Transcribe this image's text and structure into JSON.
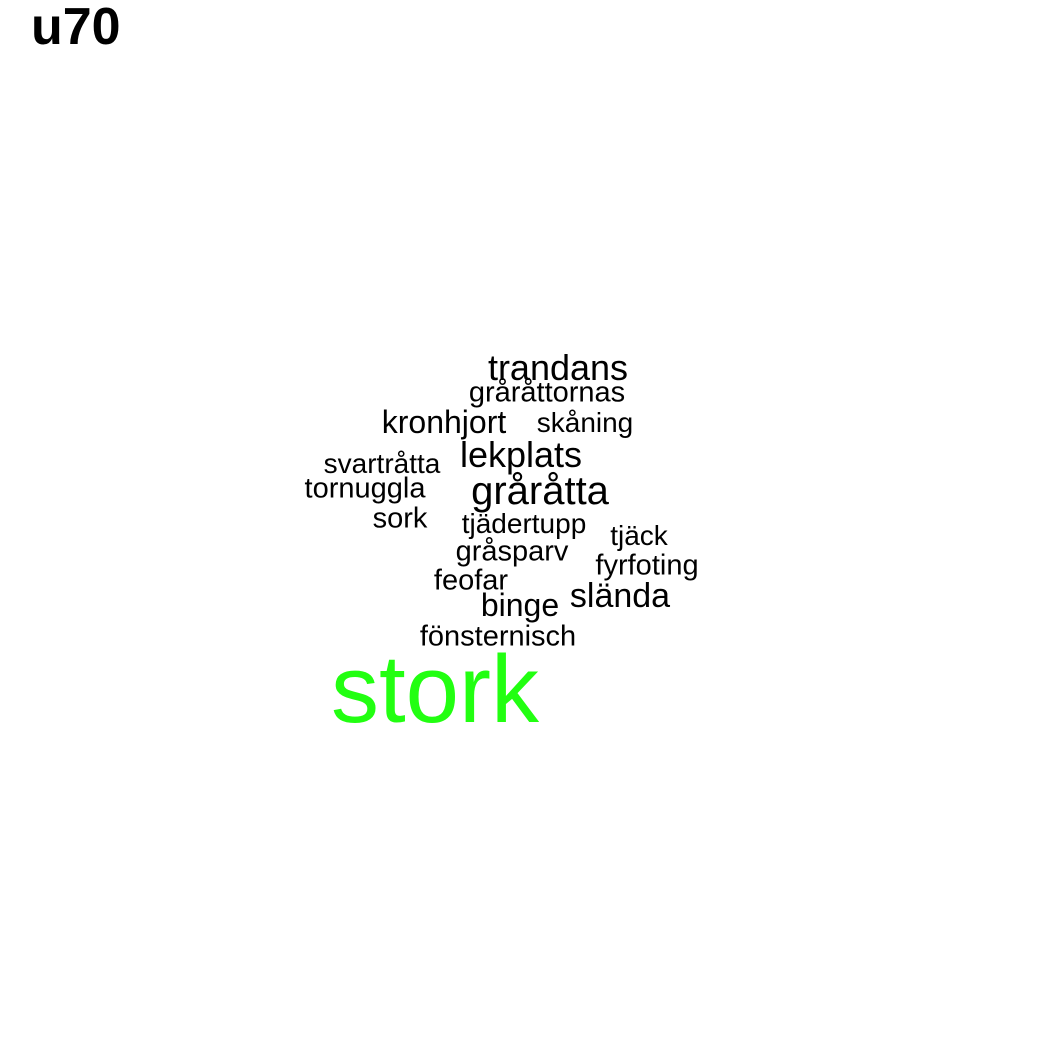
{
  "title": "u70",
  "colors": {
    "default_word": "#000000",
    "highlight_word": "#22ff11"
  },
  "words": [
    {
      "text": "trandans"
    },
    {
      "text": "gråråttornas"
    },
    {
      "text": "kronhjort"
    },
    {
      "text": "skåning"
    },
    {
      "text": "lekplats"
    },
    {
      "text": "svartråtta"
    },
    {
      "text": "tornuggla"
    },
    {
      "text": "gråråtta"
    },
    {
      "text": "sork"
    },
    {
      "text": "tjädertupp"
    },
    {
      "text": "tjäck"
    },
    {
      "text": "gråsparv"
    },
    {
      "text": "fyrfoting"
    },
    {
      "text": "feofar"
    },
    {
      "text": "slända"
    },
    {
      "text": "binge"
    },
    {
      "text": "fönsternisch"
    },
    {
      "text": "stork",
      "highlighted": true
    }
  ]
}
